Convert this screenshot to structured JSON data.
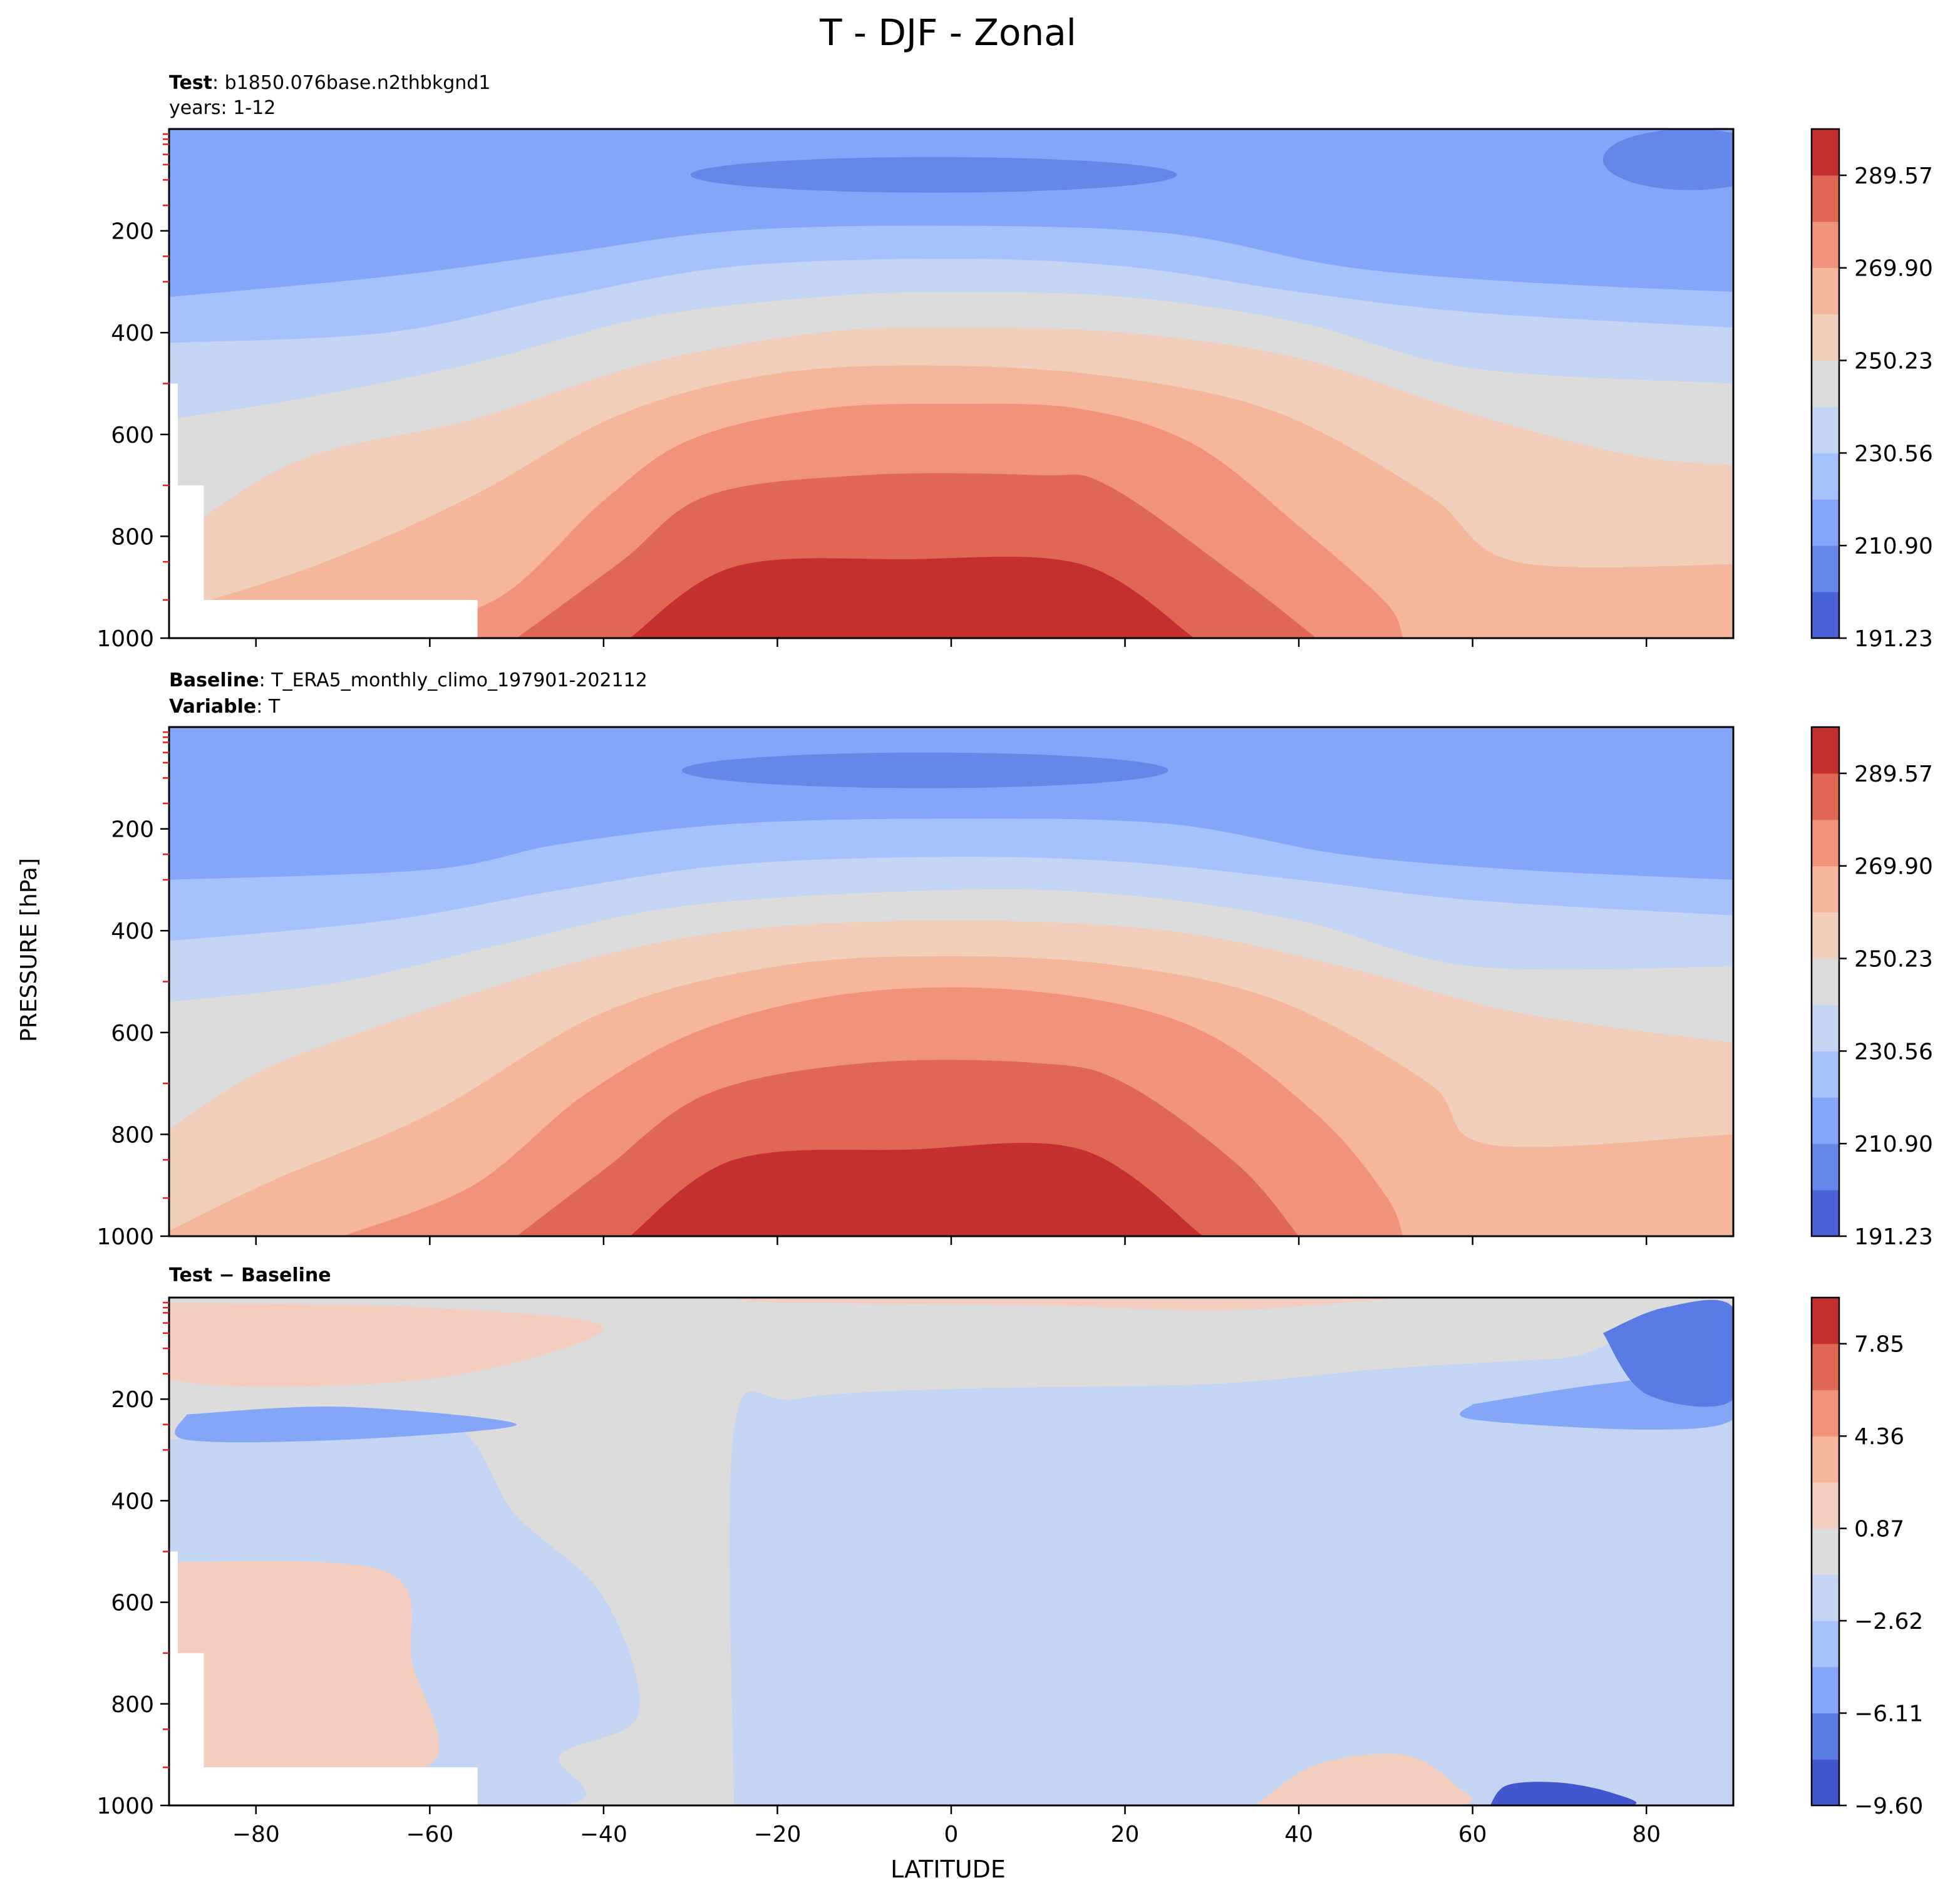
{
  "figure": {
    "title": "T - DJF - Zonal",
    "xlabel": "LATITUDE",
    "ylabel": "PRESSURE [hPa]"
  },
  "colors": {
    "temperature_levels": [
      "#4a62d7",
      "#6587e9",
      "#85a6f8",
      "#a6c2fe",
      "#c4d5f3",
      "#dcdcdc",
      "#f1cdbc",
      "#f5b69b",
      "#f0937a",
      "#e06753",
      "#c42f2f"
    ],
    "difference_levels": [
      "#4257cd",
      "#5a7ae4",
      "#85a6f8",
      "#a6c2fe",
      "#c4d5f3",
      "#dcdcdc",
      "#f3cdbd",
      "#f5b69b",
      "#f0937a",
      "#e06753",
      "#c42f2f"
    ]
  },
  "chart_data": [
    {
      "type": "contour",
      "panel": "test",
      "label_bold": "Test",
      "label_text": ": b1850.076base.n2thbkgnd1",
      "label_line2": "years: 1-12",
      "x_ticks": [
        -80,
        -60,
        -40,
        -20,
        0,
        20,
        40,
        60,
        80
      ],
      "y_ticks": [
        200,
        400,
        600,
        800,
        1000
      ],
      "xlim": [
        -90,
        90
      ],
      "ylim": [
        1000,
        0
      ],
      "colorbar_ticks": [
        "289.57",
        "269.90",
        "250.23",
        "230.56",
        "210.90",
        "191.23"
      ],
      "colorbar_range": [
        191.23,
        299.4
      ],
      "isotherms": [
        {
          "level": 294.5,
          "points": [
            [
              -37,
              1000
            ],
            [
              -25,
              860
            ],
            [
              -5,
              845
            ],
            [
              15,
              855
            ],
            [
              28,
              1000
            ]
          ]
        },
        {
          "level": 285.0,
          "points": [
            [
              -50,
              1000
            ],
            [
              -38,
              850
            ],
            [
              -28,
              720
            ],
            [
              -10,
              680
            ],
            [
              10,
              680
            ],
            [
              18,
              700
            ],
            [
              33,
              880
            ],
            [
              42,
              1000
            ]
          ]
        },
        {
          "level": 275.0,
          "points": [
            [
              -66,
              1000
            ],
            [
              -52,
              920
            ],
            [
              -40,
              730
            ],
            [
              -30,
              610
            ],
            [
              -15,
              550
            ],
            [
              0,
              540
            ],
            [
              15,
              550
            ],
            [
              28,
              620
            ],
            [
              40,
              780
            ],
            [
              50,
              930
            ],
            [
              52,
              1000
            ]
          ]
        },
        {
          "level": 265.0,
          "points": [
            [
              -90,
              950
            ],
            [
              -72,
              850
            ],
            [
              -55,
              720
            ],
            [
              -38,
              560
            ],
            [
              -20,
              480
            ],
            [
              0,
              465
            ],
            [
              20,
              490
            ],
            [
              38,
              560
            ],
            [
              55,
              720
            ],
            [
              65,
              850
            ],
            [
              90,
              855
            ]
          ]
        },
        {
          "level": 255.0,
          "points": [
            [
              -90,
              810
            ],
            [
              -75,
              650
            ],
            [
              -55,
              570
            ],
            [
              -35,
              460
            ],
            [
              -15,
              400
            ],
            [
              0,
              390
            ],
            [
              20,
              400
            ],
            [
              40,
              450
            ],
            [
              60,
              560
            ],
            [
              78,
              640
            ],
            [
              90,
              660
            ]
          ]
        },
        {
          "level": 245.0,
          "points": [
            [
              -90,
              570
            ],
            [
              -75,
              530
            ],
            [
              -55,
              460
            ],
            [
              -35,
              370
            ],
            [
              -15,
              330
            ],
            [
              0,
              320
            ],
            [
              20,
              330
            ],
            [
              40,
              380
            ],
            [
              60,
              470
            ],
            [
              90,
              500
            ]
          ]
        },
        {
          "level": 235.0,
          "points": [
            [
              -90,
              420
            ],
            [
              -65,
              400
            ],
            [
              -45,
              330
            ],
            [
              -25,
              270
            ],
            [
              0,
              255
            ],
            [
              20,
              270
            ],
            [
              40,
              320
            ],
            [
              60,
              360
            ],
            [
              90,
              390
            ]
          ]
        },
        {
          "level": 225.0,
          "points": [
            [
              -90,
              330
            ],
            [
              -65,
              290
            ],
            [
              -45,
              245
            ],
            [
              -25,
              200
            ],
            [
              0,
              190
            ],
            [
              25,
              205
            ],
            [
              45,
              270
            ],
            [
              65,
              300
            ],
            [
              90,
              320
            ]
          ]
        }
      ],
      "cold_cores": [
        {
          "level": 215.0,
          "center": [
            -5,
            95
          ],
          "half_width": 40,
          "half_height": 85
        },
        {
          "level": 205.0,
          "center": [
            -2,
            90
          ],
          "half_width": 28,
          "half_height": 35
        },
        {
          "level": 215.0,
          "center": [
            82,
            130
          ],
          "half_width": 20,
          "half_height": 150
        },
        {
          "level": 205.0,
          "center": [
            85,
            60
          ],
          "half_width": 10,
          "half_height": 60
        }
      ]
    },
    {
      "type": "contour",
      "panel": "baseline",
      "label_bold": "Baseline",
      "label_text": ": T_ERA5_monthly_climo_197901-202112",
      "label_bold2": "Variable",
      "label_text2": ": T",
      "x_ticks": [
        -80,
        -60,
        -40,
        -20,
        0,
        20,
        40,
        60,
        80
      ],
      "y_ticks": [
        200,
        400,
        600,
        800,
        1000
      ],
      "xlim": [
        -90,
        90
      ],
      "ylim": [
        1000,
        0
      ],
      "colorbar_ticks": [
        "289.57",
        "269.90",
        "250.23",
        "230.56",
        "210.90",
        "191.23"
      ],
      "colorbar_range": [
        191.23,
        299.4
      ],
      "isotherms": [
        {
          "level": 294.5,
          "points": [
            [
              -37,
              1000
            ],
            [
              -25,
              850
            ],
            [
              -5,
              830
            ],
            [
              15,
              830
            ],
            [
              29,
              1000
            ]
          ]
        },
        {
          "level": 285.0,
          "points": [
            [
              -50,
              1000
            ],
            [
              -40,
              870
            ],
            [
              -28,
              720
            ],
            [
              -10,
              660
            ],
            [
              10,
              660
            ],
            [
              20,
              700
            ],
            [
              33,
              860
            ],
            [
              40,
              1000
            ]
          ]
        },
        {
          "level": 275.0,
          "points": [
            [
              -70,
              1000
            ],
            [
              -55,
              900
            ],
            [
              -42,
              720
            ],
            [
              -28,
              590
            ],
            [
              -10,
              520
            ],
            [
              10,
              520
            ],
            [
              28,
              590
            ],
            [
              42,
              760
            ],
            [
              50,
              920
            ],
            [
              52,
              1000
            ]
          ]
        },
        {
          "level": 265.0,
          "points": [
            [
              -90,
              990
            ],
            [
              -78,
              890
            ],
            [
              -60,
              760
            ],
            [
              -40,
              560
            ],
            [
              -20,
              470
            ],
            [
              0,
              450
            ],
            [
              20,
              470
            ],
            [
              38,
              540
            ],
            [
              55,
              700
            ],
            [
              62,
              820
            ],
            [
              90,
              800
            ]
          ]
        },
        {
          "level": 255.0,
          "points": [
            [
              -90,
              790
            ],
            [
              -80,
              680
            ],
            [
              -68,
              600
            ],
            [
              -45,
              470
            ],
            [
              -25,
              400
            ],
            [
              0,
              380
            ],
            [
              25,
              400
            ],
            [
              45,
              470
            ],
            [
              65,
              560
            ],
            [
              90,
              620
            ]
          ]
        },
        {
          "level": 245.0,
          "points": [
            [
              -90,
              540
            ],
            [
              -70,
              500
            ],
            [
              -50,
              420
            ],
            [
              -30,
              350
            ],
            [
              0,
              320
            ],
            [
              20,
              330
            ],
            [
              40,
              380
            ],
            [
              60,
              470
            ],
            [
              90,
              470
            ]
          ]
        },
        {
          "level": 235.0,
          "points": [
            [
              -90,
              420
            ],
            [
              -65,
              380
            ],
            [
              -45,
              320
            ],
            [
              -25,
              270
            ],
            [
              0,
              255
            ],
            [
              20,
              265
            ],
            [
              40,
              300
            ],
            [
              60,
              340
            ],
            [
              90,
              370
            ]
          ]
        },
        {
          "level": 225.0,
          "points": [
            [
              -90,
              300
            ],
            [
              -60,
              280
            ],
            [
              -45,
              230
            ],
            [
              -25,
              190
            ],
            [
              0,
              180
            ],
            [
              25,
              190
            ],
            [
              45,
              250
            ],
            [
              65,
              280
            ],
            [
              90,
              300
            ]
          ]
        }
      ],
      "cold_cores": [
        {
          "level": 215.0,
          "center": [
            -5,
            95
          ],
          "half_width": 42,
          "half_height": 80
        },
        {
          "level": 205.0,
          "center": [
            -3,
            85
          ],
          "half_width": 28,
          "half_height": 35
        },
        {
          "level": 215.0,
          "center": [
            82,
            120
          ],
          "half_width": 18,
          "half_height": 110
        }
      ]
    },
    {
      "type": "contour",
      "panel": "difference",
      "label_bold": "Test − Baseline",
      "x_ticks": [
        -80,
        -60,
        -40,
        -20,
        0,
        20,
        40,
        60,
        80
      ],
      "y_ticks": [
        200,
        400,
        600,
        800,
        1000
      ],
      "xlim": [
        -90,
        90
      ],
      "ylim": [
        1000,
        0
      ],
      "colorbar_ticks": [
        "7.85",
        "4.36",
        "0.87",
        "−2.62",
        "−6.11",
        "−9.60"
      ],
      "colorbar_range": [
        -9.6,
        9.6
      ],
      "regions": [
        {
          "level": -2.5,
          "points": [
            [
              -90,
              280
            ],
            [
              -60,
              230
            ],
            [
              -50,
              430
            ],
            [
              -40,
              590
            ],
            [
              -36,
              820
            ],
            [
              -45,
              900
            ],
            [
              -45,
              1000
            ],
            [
              -90,
              1000
            ]
          ]
        },
        {
          "level": -2.5,
          "points": [
            [
              -25,
              1000
            ],
            [
              -25,
              260
            ],
            [
              -18,
              200
            ],
            [
              0,
              180
            ],
            [
              30,
              170
            ],
            [
              50,
              140
            ],
            [
              70,
              120
            ],
            [
              90,
              100
            ],
            [
              90,
              1000
            ]
          ]
        },
        {
          "level": -6.0,
          "points": [
            [
              60,
              210
            ],
            [
              75,
              170
            ],
            [
              90,
              150
            ],
            [
              90,
              240
            ],
            [
              80,
              260
            ],
            [
              60,
              240
            ]
          ]
        },
        {
          "level": -7.5,
          "points": [
            [
              75,
              70
            ],
            [
              82,
              20
            ],
            [
              90,
              20
            ],
            [
              90,
              200
            ],
            [
              80,
              190
            ]
          ]
        },
        {
          "level": -6.0,
          "points": [
            [
              -88,
              230
            ],
            [
              -70,
              215
            ],
            [
              -50,
              250
            ],
            [
              -70,
              280
            ],
            [
              -88,
              280
            ]
          ]
        },
        {
          "level": 1.5,
          "points": [
            [
              -90,
              10
            ],
            [
              -60,
              20
            ],
            [
              -40,
              60
            ],
            [
              -60,
              160
            ],
            [
              -90,
              160
            ]
          ]
        },
        {
          "level": 1.5,
          "points": [
            [
              -20,
              10
            ],
            [
              10,
              15
            ],
            [
              30,
              25
            ],
            [
              45,
              10
            ],
            [
              45,
              0
            ],
            [
              -20,
              0
            ]
          ]
        },
        {
          "level": 3.5,
          "points": [
            [
              -85,
              600
            ],
            [
              -70,
              560
            ],
            [
              -68,
              740
            ],
            [
              -66,
              900
            ],
            [
              -75,
              930
            ],
            [
              -85,
              920
            ]
          ]
        },
        {
          "level": 1.5,
          "points": [
            [
              -90,
              520
            ],
            [
              -65,
              540
            ],
            [
              -62,
              720
            ],
            [
              -60,
              920
            ],
            [
              -80,
              930
            ],
            [
              -90,
              900
            ]
          ]
        },
        {
          "level": 1.5,
          "points": [
            [
              35,
              1000
            ],
            [
              42,
              920
            ],
            [
              52,
              900
            ],
            [
              58,
              960
            ],
            [
              58,
              1000
            ]
          ]
        },
        {
          "level": -8.0,
          "points": [
            [
              62,
              1000
            ],
            [
              64,
              960
            ],
            [
              70,
              955
            ],
            [
              76,
              975
            ],
            [
              78,
              1000
            ]
          ]
        }
      ]
    }
  ]
}
